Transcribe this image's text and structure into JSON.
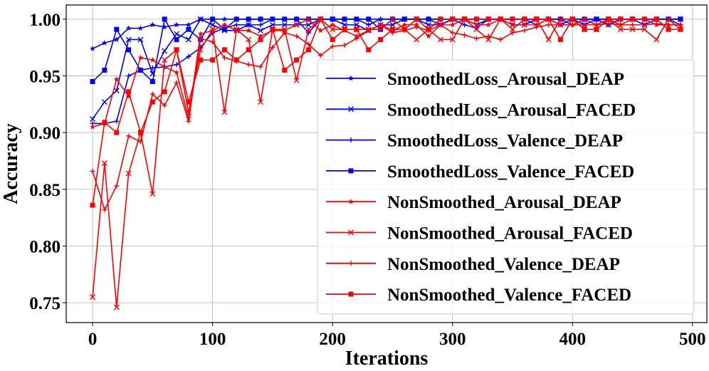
{
  "chart_data": {
    "type": "line",
    "xlabel": "Iterations",
    "ylabel": "Accuracy",
    "xlim": [
      -22,
      512
    ],
    "ylim": [
      0.7325,
      1.0125
    ],
    "xticks": [
      0,
      100,
      200,
      300,
      400,
      500
    ],
    "yticks": [
      0.75,
      0.8,
      0.85,
      0.9,
      0.95,
      1.0
    ],
    "ytick_labels": [
      "0.75",
      "0.80",
      "0.85",
      "0.90",
      "0.95",
      "1.00"
    ],
    "grid": true,
    "legend_position": "center-right",
    "x": [
      0,
      10,
      20,
      30,
      40,
      50,
      60,
      70,
      80,
      90,
      100,
      110,
      120,
      130,
      140,
      150,
      160,
      170,
      180,
      190,
      200,
      210,
      220,
      230,
      240,
      250,
      260,
      270,
      280,
      290,
      300,
      310,
      320,
      330,
      340,
      350,
      360,
      370,
      380,
      390,
      400,
      410,
      420,
      430,
      440,
      450,
      460,
      470,
      480,
      490
    ],
    "series": [
      {
        "name": "SmoothedLoss_Arousal_DEAP",
        "color": "#0000ff",
        "marker": "star",
        "values": [
          0.974,
          0.979,
          0.982,
          0.992,
          0.992,
          0.995,
          0.993,
          0.995,
          0.995,
          1.0,
          1.0,
          1.0,
          1.0,
          1.0,
          1.0,
          1.0,
          1.0,
          1.0,
          1.0,
          1.0,
          1.0,
          1.0,
          1.0,
          1.0,
          1.0,
          1.0,
          1.0,
          1.0,
          1.0,
          1.0,
          1.0,
          1.0,
          1.0,
          1.0,
          1.0,
          1.0,
          1.0,
          1.0,
          1.0,
          1.0,
          1.0,
          1.0,
          1.0,
          1.0,
          1.0,
          1.0,
          1.0,
          1.0,
          1.0,
          1.0
        ]
      },
      {
        "name": "SmoothedLoss_Arousal_FACED",
        "color": "#0000ff",
        "marker": "x",
        "values": [
          0.912,
          0.927,
          0.937,
          0.982,
          0.982,
          0.952,
          0.972,
          0.987,
          0.982,
          1.0,
          0.995,
          0.99,
          0.99,
          0.995,
          0.99,
          0.995,
          0.995,
          0.995,
          0.995,
          1.0,
          1.0,
          0.995,
          0.995,
          0.99,
          0.995,
          0.995,
          1.0,
          1.0,
          0.995,
          0.995,
          1.0,
          1.0,
          0.995,
          1.0,
          1.0,
          0.995,
          0.995,
          1.0,
          1.0,
          0.995,
          1.0,
          0.995,
          1.0,
          0.995,
          1.0,
          1.0,
          0.995,
          1.0,
          1.0,
          1.0
        ]
      },
      {
        "name": "SmoothedLoss_Valence_DEAP",
        "color": "#0000ff",
        "marker": "plus",
        "values": [
          0.908,
          0.908,
          0.91,
          0.95,
          0.955,
          0.957,
          0.958,
          0.96,
          0.967,
          0.975,
          0.988,
          0.992,
          0.995,
          0.995,
          0.995,
          1.0,
          1.0,
          1.0,
          0.988,
          1.0,
          1.0,
          1.0,
          1.0,
          0.995,
          1.0,
          1.0,
          1.0,
          1.0,
          1.0,
          0.995,
          1.0,
          0.995,
          0.992,
          1.0,
          1.0,
          1.0,
          1.0,
          0.995,
          1.0,
          1.0,
          0.995,
          1.0,
          1.0,
          0.995,
          1.0,
          1.0,
          1.0,
          1.0,
          1.0,
          0.995
        ]
      },
      {
        "name": "SmoothedLoss_Valence_FACED",
        "color": "#0000ff",
        "marker": "square",
        "values": [
          0.945,
          0.955,
          0.991,
          0.973,
          0.955,
          0.945,
          1.0,
          0.982,
          0.991,
          0.982,
          1.0,
          0.991,
          1.0,
          1.0,
          1.0,
          1.0,
          1.0,
          1.0,
          1.0,
          1.0,
          1.0,
          1.0,
          1.0,
          1.0,
          0.991,
          1.0,
          1.0,
          1.0,
          1.0,
          1.0,
          1.0,
          1.0,
          1.0,
          1.0,
          1.0,
          1.0,
          1.0,
          1.0,
          1.0,
          1.0,
          1.0,
          1.0,
          1.0,
          1.0,
          1.0,
          1.0,
          1.0,
          1.0,
          1.0,
          1.0
        ]
      },
      {
        "name": "NonSmoothed_Arousal_DEAP",
        "color": "#ff0000",
        "marker": "star",
        "values": [
          0.905,
          0.908,
          0.947,
          0.932,
          0.966,
          0.964,
          0.958,
          0.953,
          0.913,
          0.987,
          0.99,
          0.995,
          0.99,
          0.99,
          0.985,
          0.99,
          0.99,
          0.995,
          1.0,
          0.99,
          0.995,
          0.99,
          0.985,
          0.99,
          0.995,
          0.99,
          0.995,
          0.995,
          0.985,
          0.995,
          0.995,
          1.0,
          0.995,
          0.995,
          1.0,
          0.995,
          0.995,
          0.995,
          1.0,
          0.995,
          0.995,
          1.0,
          0.995,
          1.0,
          0.995,
          1.0,
          1.0,
          0.995,
          0.995,
          0.995
        ]
      },
      {
        "name": "NonSmoothed_Arousal_FACED",
        "color": "#ff0000",
        "marker": "x",
        "values": [
          0.755,
          0.873,
          0.746,
          0.864,
          0.9,
          0.846,
          0.964,
          0.973,
          0.918,
          0.973,
          0.991,
          0.918,
          0.991,
          0.982,
          0.927,
          0.991,
          0.991,
          0.946,
          0.991,
          1.0,
          0.991,
          0.991,
          0.991,
          0.991,
          0.991,
          1.0,
          0.991,
          0.982,
          0.991,
          0.982,
          0.982,
          1.0,
          0.991,
          0.982,
          1.0,
          0.991,
          1.0,
          1.0,
          0.982,
          1.0,
          1.0,
          0.991,
          0.991,
          1.0,
          0.991,
          0.991,
          0.991,
          0.982,
          1.0,
          0.991
        ]
      },
      {
        "name": "NonSmoothed_Valence_DEAP",
        "color": "#ff0000",
        "marker": "plus",
        "values": [
          0.866,
          0.832,
          0.853,
          0.897,
          0.892,
          0.934,
          0.924,
          0.944,
          0.91,
          0.983,
          0.98,
          0.966,
          0.963,
          0.96,
          0.958,
          0.975,
          0.988,
          0.985,
          0.978,
          0.968,
          0.976,
          0.977,
          0.983,
          0.99,
          0.995,
          0.988,
          0.99,
          0.993,
          0.99,
          0.995,
          0.988,
          0.986,
          0.983,
          0.985,
          0.982,
          0.988,
          0.99,
          0.993,
          0.995,
          0.995,
          0.995,
          0.995,
          0.995,
          0.996,
          0.995,
          0.995,
          0.995,
          0.996,
          0.995,
          0.995
        ]
      },
      {
        "name": "NonSmoothed_Valence_FACED",
        "color": "#ff0000",
        "marker": "square",
        "values": [
          0.836,
          0.909,
          0.9,
          0.936,
          0.9,
          0.927,
          0.936,
          0.973,
          0.927,
          0.964,
          0.964,
          0.973,
          0.964,
          0.973,
          0.982,
          0.991,
          0.955,
          0.964,
          0.973,
          1.0,
          0.982,
          0.991,
          0.991,
          0.973,
          0.982,
          0.991,
          0.991,
          1.0,
          0.991,
          1.0,
          1.0,
          1.0,
          1.0,
          1.0,
          1.0,
          1.0,
          1.0,
          1.0,
          1.0,
          0.982,
          1.0,
          0.991,
          0.991,
          1.0,
          1.0,
          1.0,
          1.0,
          1.0,
          0.991,
          0.991
        ]
      }
    ]
  }
}
